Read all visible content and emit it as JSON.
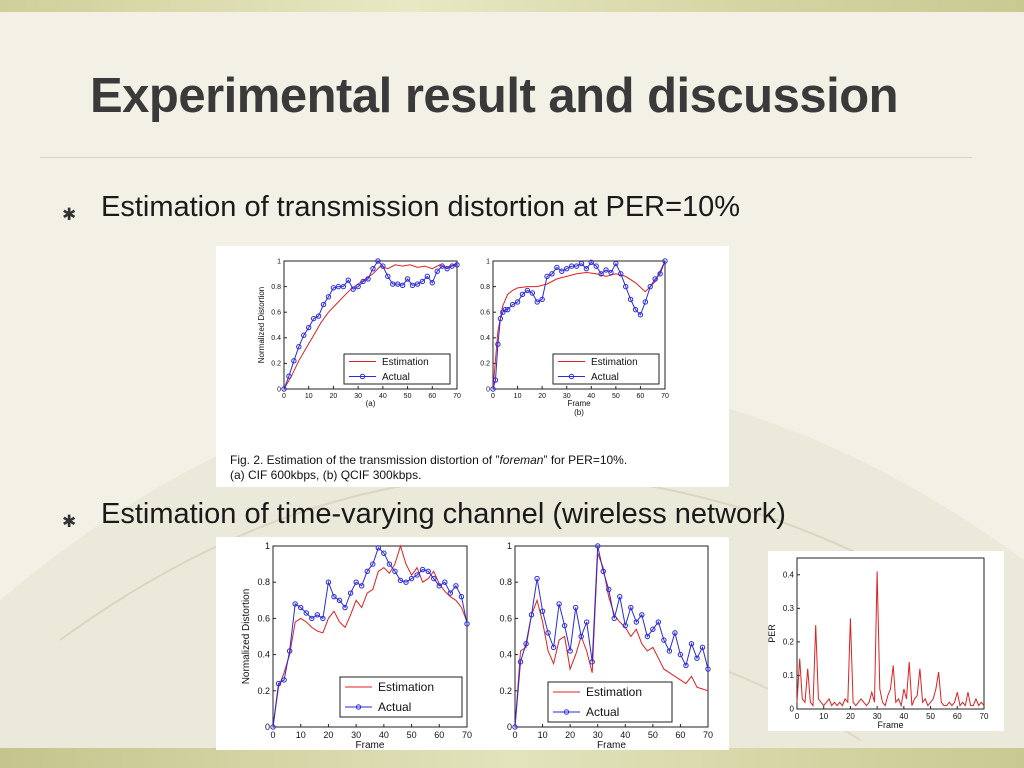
{
  "slide": {
    "title": "Experimental result and discussion",
    "bullets": [
      {
        "text": "Estimation of transmission distortion at PER=10%"
      },
      {
        "text": "Estimation of time-varying channel (wireless network)"
      }
    ],
    "bullet_glyph": "✱"
  },
  "figure_caption": {
    "line1_prefix": "Fig. 2.   Estimation of the transmission distortion of ”",
    "line1_italic": "foreman",
    "line1_suffix": "” for PER=10%.",
    "line2": "(a) CIF 600kbps, (b) QCIF 300kbps."
  },
  "colors": {
    "estimation": "#e02020",
    "actual": "#2a2adf",
    "per": "#dd2222",
    "title": "#3a3a3a"
  },
  "chart_data": [
    {
      "id": "fig2a",
      "type": "line",
      "subtitle": "(a)",
      "xlabel": "",
      "ylabel": "Normalized Distortion",
      "xlim": [
        0,
        70
      ],
      "ylim": [
        0,
        1
      ],
      "xticks": [
        0,
        10,
        20,
        30,
        40,
        50,
        60,
        70
      ],
      "yticks": [
        0,
        0.2,
        0.4,
        0.6,
        0.8,
        1
      ],
      "ytick_labels": [
        "0",
        "0.2",
        "0.4",
        "0.6",
        "0.8",
        "1"
      ],
      "legend": {
        "position": "lower-right"
      },
      "series": [
        {
          "name": "Estimation",
          "style": "line",
          "x": [
            0,
            3,
            6,
            9,
            12,
            15,
            18,
            21,
            24,
            27,
            30,
            33,
            36,
            39,
            42,
            45,
            48,
            51,
            54,
            57,
            60,
            63,
            66,
            70
          ],
          "y": [
            0,
            0.1,
            0.22,
            0.32,
            0.42,
            0.52,
            0.6,
            0.66,
            0.72,
            0.78,
            0.82,
            0.86,
            0.9,
            0.96,
            0.94,
            0.97,
            0.96,
            0.97,
            0.95,
            0.96,
            0.94,
            0.97,
            0.95,
            0.98
          ]
        },
        {
          "name": "Actual",
          "style": "line-marker",
          "x": [
            0,
            2,
            4,
            6,
            8,
            10,
            12,
            14,
            16,
            18,
            20,
            22,
            24,
            26,
            28,
            30,
            32,
            34,
            36,
            38,
            40,
            42,
            44,
            46,
            48,
            50,
            52,
            54,
            56,
            58,
            60,
            62,
            64,
            66,
            68,
            70
          ],
          "y": [
            0,
            0.1,
            0.22,
            0.33,
            0.42,
            0.48,
            0.55,
            0.57,
            0.66,
            0.72,
            0.79,
            0.8,
            0.8,
            0.85,
            0.78,
            0.8,
            0.84,
            0.86,
            0.94,
            1.0,
            0.96,
            0.88,
            0.82,
            0.82,
            0.81,
            0.86,
            0.81,
            0.82,
            0.84,
            0.88,
            0.83,
            0.92,
            0.96,
            0.94,
            0.96,
            0.97
          ]
        }
      ]
    },
    {
      "id": "fig2b",
      "type": "line",
      "subtitle": "(b)",
      "xlabel": "Frame",
      "ylabel": "",
      "xlim": [
        0,
        70
      ],
      "ylim": [
        0,
        1
      ],
      "xticks": [
        0,
        10,
        20,
        30,
        40,
        50,
        60,
        70
      ],
      "yticks": [
        0,
        0.2,
        0.4,
        0.6,
        0.8,
        1
      ],
      "ytick_labels": [
        "0",
        "0.2",
        "0.4",
        "0.6",
        "0.8",
        "1"
      ],
      "legend": {
        "position": "lower-right"
      },
      "series": [
        {
          "name": "Estimation",
          "style": "line",
          "x": [
            0,
            2,
            4,
            6,
            8,
            10,
            14,
            18,
            22,
            26,
            30,
            34,
            38,
            42,
            46,
            50,
            54,
            58,
            62,
            66,
            70
          ],
          "y": [
            0,
            0.45,
            0.65,
            0.74,
            0.77,
            0.79,
            0.8,
            0.8,
            0.82,
            0.86,
            0.88,
            0.9,
            0.91,
            0.9,
            0.88,
            0.9,
            0.88,
            0.83,
            0.76,
            0.84,
            1.0
          ]
        },
        {
          "name": "Actual",
          "style": "line-marker",
          "x": [
            0,
            1,
            2,
            3,
            4,
            5,
            6,
            8,
            10,
            12,
            14,
            16,
            18,
            20,
            22,
            24,
            26,
            28,
            30,
            32,
            34,
            36,
            38,
            40,
            42,
            44,
            46,
            48,
            50,
            52,
            54,
            56,
            58,
            60,
            62,
            64,
            66,
            68,
            70
          ],
          "y": [
            0,
            0.07,
            0.35,
            0.55,
            0.6,
            0.62,
            0.62,
            0.66,
            0.68,
            0.74,
            0.77,
            0.75,
            0.68,
            0.7,
            0.88,
            0.9,
            0.95,
            0.92,
            0.94,
            0.96,
            0.96,
            0.98,
            0.94,
            0.99,
            0.96,
            0.9,
            0.93,
            0.91,
            0.98,
            0.9,
            0.8,
            0.7,
            0.62,
            0.58,
            0.68,
            0.8,
            0.86,
            0.9,
            1.0
          ]
        }
      ]
    },
    {
      "id": "wireless-a",
      "type": "line",
      "xlabel": "Frame",
      "ylabel": "Normalized Distortion",
      "xlim": [
        0,
        70
      ],
      "ylim": [
        0,
        1
      ],
      "xticks": [
        0,
        10,
        20,
        30,
        40,
        50,
        60,
        70
      ],
      "yticks": [
        0,
        0.2,
        0.4,
        0.6,
        0.8,
        1
      ],
      "ytick_labels": [
        "0",
        "0.2",
        "0.4",
        "0.6",
        "0.8",
        "1"
      ],
      "legend": {
        "position": "lower-right"
      },
      "series": [
        {
          "name": "Estimation",
          "style": "line",
          "x": [
            0,
            2,
            4,
            6,
            8,
            10,
            12,
            14,
            16,
            18,
            20,
            22,
            24,
            26,
            28,
            30,
            32,
            34,
            36,
            38,
            40,
            42,
            44,
            46,
            48,
            50,
            52,
            54,
            56,
            58,
            60,
            62,
            64,
            66,
            68,
            70
          ],
          "y": [
            0,
            0.22,
            0.3,
            0.4,
            0.58,
            0.6,
            0.58,
            0.55,
            0.53,
            0.52,
            0.6,
            0.64,
            0.58,
            0.55,
            0.62,
            0.7,
            0.66,
            0.74,
            0.76,
            0.86,
            0.88,
            0.85,
            0.9,
            1.0,
            0.9,
            0.84,
            0.88,
            0.8,
            0.82,
            0.86,
            0.79,
            0.75,
            0.72,
            0.7,
            0.66,
            0.58
          ]
        },
        {
          "name": "Actual",
          "style": "line-marker",
          "x": [
            0,
            2,
            4,
            6,
            8,
            10,
            12,
            14,
            16,
            18,
            20,
            22,
            24,
            26,
            28,
            30,
            32,
            34,
            36,
            38,
            40,
            42,
            44,
            46,
            48,
            50,
            52,
            54,
            56,
            58,
            60,
            62,
            64,
            66,
            68,
            70
          ],
          "y": [
            0,
            0.24,
            0.26,
            0.42,
            0.68,
            0.66,
            0.63,
            0.6,
            0.62,
            0.6,
            0.8,
            0.72,
            0.7,
            0.66,
            0.74,
            0.8,
            0.78,
            0.86,
            0.9,
            0.99,
            0.96,
            0.9,
            0.86,
            0.81,
            0.8,
            0.82,
            0.84,
            0.87,
            0.86,
            0.82,
            0.78,
            0.8,
            0.74,
            0.78,
            0.72,
            0.57
          ]
        }
      ]
    },
    {
      "id": "wireless-b",
      "type": "line",
      "xlabel": "Frame",
      "ylabel": "",
      "xlim": [
        0,
        70
      ],
      "ylim": [
        0,
        1
      ],
      "xticks": [
        0,
        10,
        20,
        30,
        40,
        50,
        60,
        70
      ],
      "yticks": [
        0,
        0.2,
        0.4,
        0.6,
        0.8,
        1
      ],
      "ytick_labels": [
        "0",
        "0.2",
        "0.4",
        "0.6",
        "0.8",
        "1"
      ],
      "legend": {
        "position": "lower-center"
      },
      "series": [
        {
          "name": "Estimation",
          "style": "line",
          "x": [
            0,
            2,
            4,
            6,
            8,
            10,
            12,
            14,
            16,
            18,
            20,
            22,
            24,
            26,
            28,
            30,
            32,
            34,
            36,
            38,
            40,
            42,
            44,
            46,
            48,
            50,
            52,
            54,
            56,
            58,
            60,
            62,
            64,
            66,
            68,
            70
          ],
          "y": [
            0,
            0.42,
            0.44,
            0.62,
            0.7,
            0.58,
            0.42,
            0.35,
            0.48,
            0.5,
            0.32,
            0.4,
            0.5,
            0.42,
            0.3,
            0.96,
            0.88,
            0.72,
            0.62,
            0.58,
            0.55,
            0.5,
            0.54,
            0.46,
            0.42,
            0.44,
            0.38,
            0.32,
            0.3,
            0.28,
            0.26,
            0.24,
            0.28,
            0.22,
            0.21,
            0.2
          ]
        },
        {
          "name": "Actual",
          "style": "line-marker",
          "x": [
            0,
            2,
            4,
            6,
            8,
            10,
            12,
            14,
            16,
            18,
            20,
            22,
            24,
            26,
            28,
            30,
            32,
            34,
            36,
            38,
            40,
            42,
            44,
            46,
            48,
            50,
            52,
            54,
            56,
            58,
            60,
            62,
            64,
            66,
            68,
            70
          ],
          "y": [
            0,
            0.36,
            0.46,
            0.62,
            0.82,
            0.64,
            0.52,
            0.44,
            0.68,
            0.56,
            0.42,
            0.66,
            0.5,
            0.58,
            0.36,
            1.0,
            0.86,
            0.76,
            0.6,
            0.72,
            0.56,
            0.66,
            0.58,
            0.62,
            0.5,
            0.54,
            0.58,
            0.48,
            0.42,
            0.52,
            0.4,
            0.34,
            0.46,
            0.38,
            0.44,
            0.32
          ]
        }
      ]
    },
    {
      "id": "per",
      "type": "line",
      "xlabel": "Frame",
      "ylabel": "PER",
      "xlim": [
        0,
        70
      ],
      "ylim": [
        0,
        0.45
      ],
      "xticks": [
        0,
        10,
        20,
        30,
        40,
        50,
        60,
        70
      ],
      "yticks": [
        0,
        0.1,
        0.2,
        0.3,
        0.4
      ],
      "ytick_labels": [
        "0",
        "0.1",
        "0.2",
        "0.3",
        "0.4"
      ],
      "series": [
        {
          "name": "PER",
          "style": "line",
          "x": [
            0,
            1,
            2,
            3,
            4,
            5,
            6,
            7,
            8,
            9,
            10,
            11,
            12,
            13,
            14,
            15,
            16,
            17,
            18,
            19,
            20,
            21,
            22,
            23,
            24,
            25,
            26,
            27,
            28,
            29,
            30,
            31,
            32,
            33,
            34,
            35,
            36,
            37,
            38,
            39,
            40,
            41,
            42,
            43,
            44,
            45,
            46,
            47,
            48,
            49,
            50,
            51,
            52,
            53,
            54,
            55,
            56,
            57,
            58,
            59,
            60,
            61,
            62,
            63,
            64,
            65,
            66,
            67,
            68,
            69,
            70
          ],
          "y": [
            0.02,
            0.15,
            0.03,
            0.02,
            0.12,
            0.02,
            0.01,
            0.25,
            0.03,
            0.02,
            0.01,
            0.02,
            0.03,
            0.01,
            0.02,
            0.01,
            0.02,
            0.01,
            0.03,
            0.02,
            0.27,
            0.02,
            0.01,
            0.02,
            0.03,
            0.02,
            0.01,
            0.02,
            0.05,
            0.02,
            0.41,
            0.06,
            0.02,
            0.01,
            0.04,
            0.06,
            0.13,
            0.02,
            0.03,
            0.01,
            0.06,
            0.03,
            0.14,
            0.01,
            0.03,
            0.04,
            0.12,
            0.02,
            0.03,
            0.01,
            0.02,
            0.03,
            0.06,
            0.11,
            0.02,
            0.01,
            0.01,
            0.02,
            0.01,
            0.02,
            0.05,
            0.01,
            0.02,
            0.01,
            0.05,
            0.01,
            0.01,
            0.03,
            0.01,
            0.02,
            0.01
          ]
        }
      ]
    }
  ]
}
